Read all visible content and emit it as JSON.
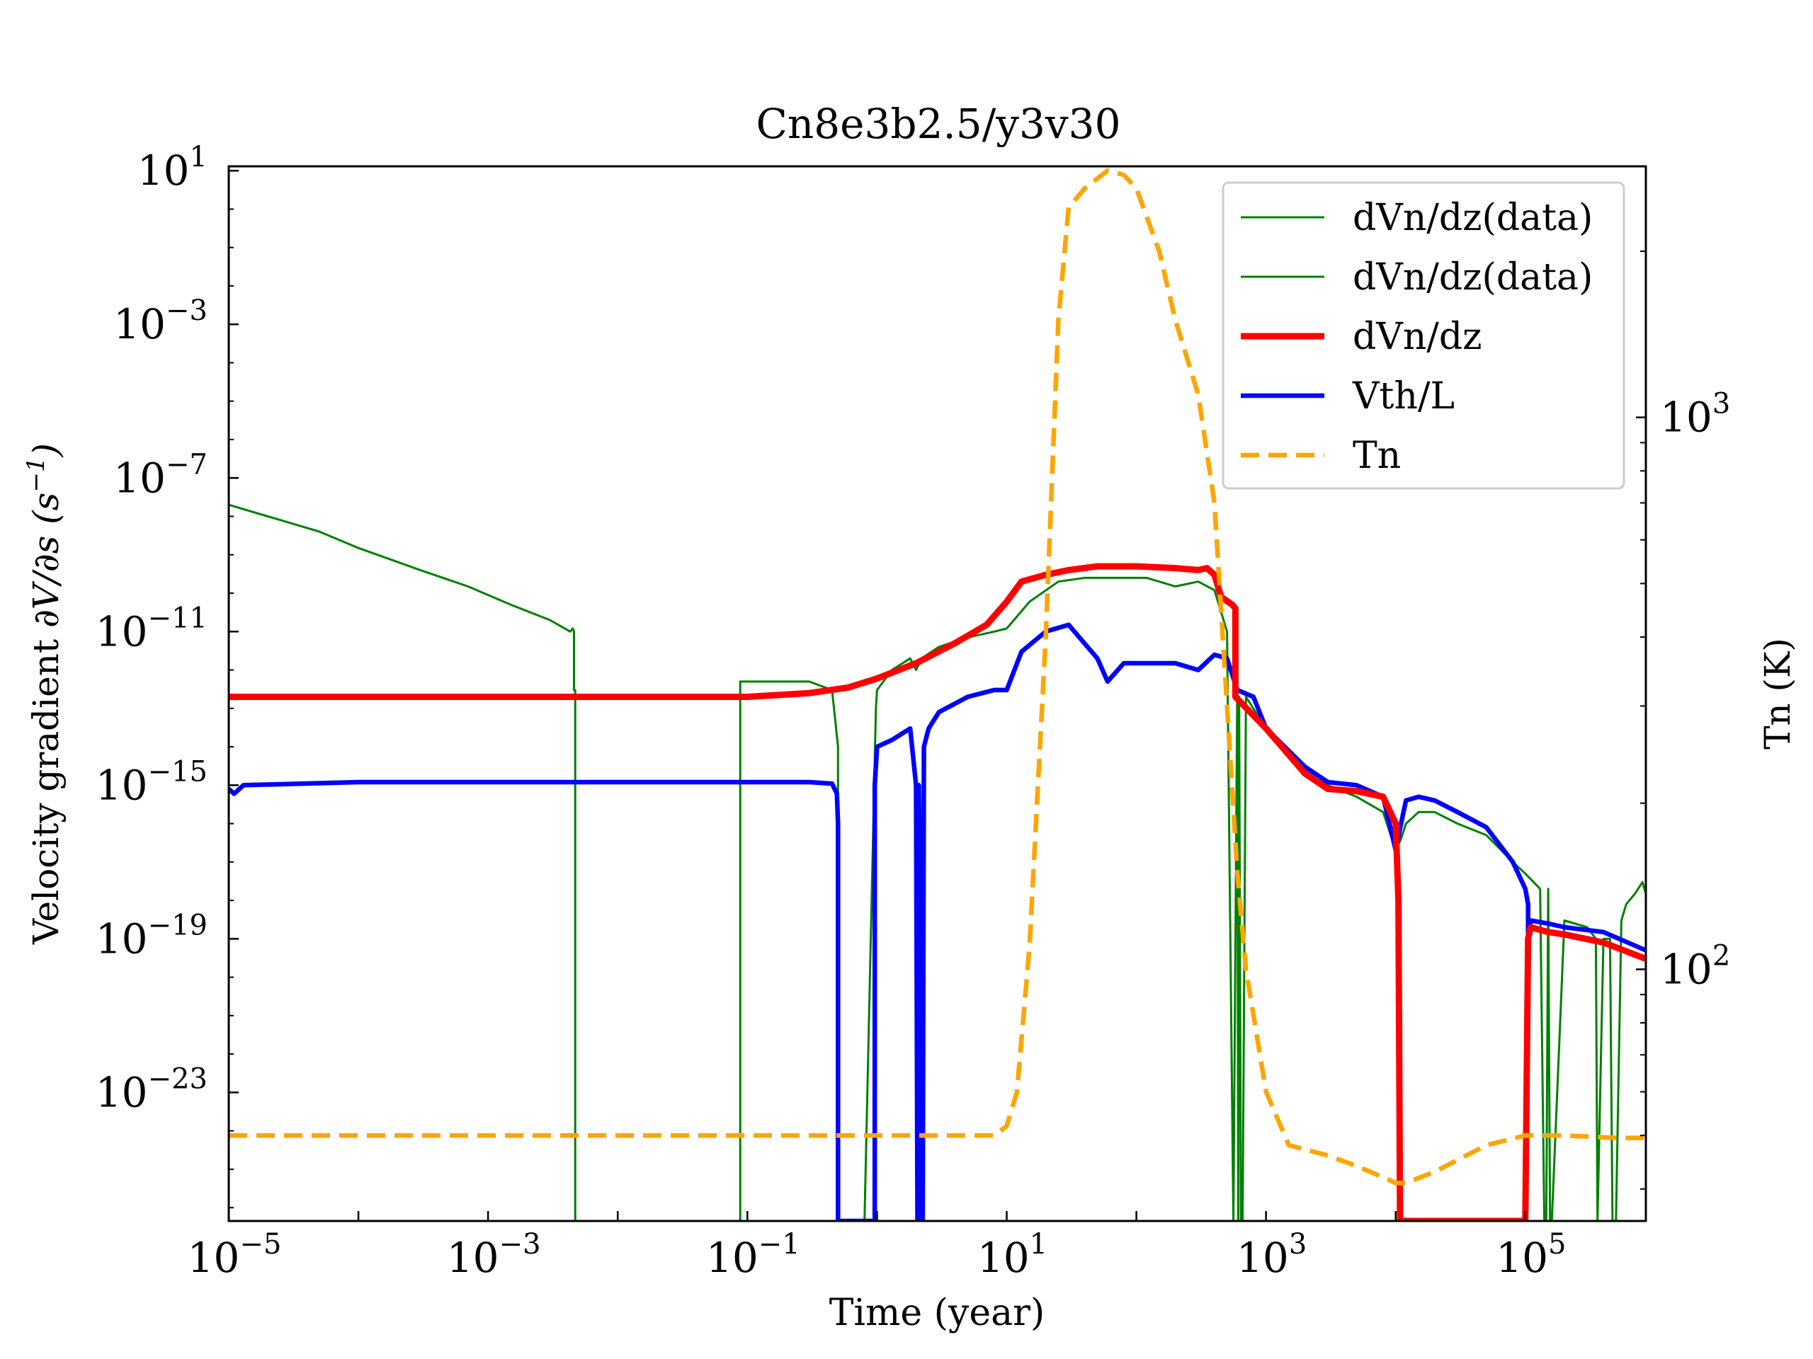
{
  "chart_data": {
    "type": "line",
    "title": "Cn8e3b2.5/y3v30",
    "xlabel": "Time (year)",
    "ylabel": "Velocity gradient ∂V/∂s (s⁻¹)",
    "ylabel_parts": {
      "main": "Velocity gradient ",
      "expr": "∂V/∂s (s",
      "sup": "−1",
      "end": ")"
    },
    "y2label": "Tn (K)",
    "x_scale": "log",
    "y_scale": "log",
    "y2_scale": "log",
    "xlim": [
      1e-05,
      850000.0
    ],
    "ylim": [
      4.5e-27,
      13.0
    ],
    "y2lim": [
      35,
      2850.0
    ],
    "x_ticks": [
      {
        "base": "10",
        "exp": "−5"
      },
      {
        "base": "10",
        "exp": "−3"
      },
      {
        "base": "10",
        "exp": "−1"
      },
      {
        "base": "10",
        "exp": "1"
      },
      {
        "base": "10",
        "exp": "3"
      },
      {
        "base": "10",
        "exp": "5"
      }
    ],
    "y_ticks": [
      {
        "base": "10",
        "exp": "1"
      },
      {
        "base": "10",
        "exp": "−3"
      },
      {
        "base": "10",
        "exp": "−7"
      },
      {
        "base": "10",
        "exp": "−11"
      },
      {
        "base": "10",
        "exp": "−15"
      },
      {
        "base": "10",
        "exp": "−19"
      },
      {
        "base": "10",
        "exp": "−23"
      }
    ],
    "y2_ticks": [
      {
        "base": "10",
        "exp": "3"
      },
      {
        "base": "10",
        "exp": "2"
      }
    ],
    "legend_position": "top-right",
    "series": [
      {
        "name": "dVn/dz(data)",
        "color": "#008000",
        "style": "solid",
        "width": "thin",
        "axis": "left",
        "x": [
          1e-05,
          2e-05,
          5e-05,
          0.0001,
          0.0003,
          0.0007,
          0.0015,
          0.003,
          0.0043,
          0.0045,
          0.0046,
          0.0046,
          0.0047,
          0.0047,
          0.088,
          0.088,
          0.09,
          0.3,
          0.45,
          0.5,
          0.5,
          0.8,
          0.98,
          1.0,
          1.3,
          1.8,
          2.0,
          2.2,
          3.0,
          5.0,
          8.0,
          10
        ],
        "y": [
          2e-08,
          1e-08,
          4e-09,
          1.5e-09,
          4e-10,
          1.5e-10,
          5e-11,
          2e-11,
          1e-11,
          1.2e-11,
          1e-11,
          3e-13,
          3e-13,
          4.5e-27,
          4.5e-27,
          5e-13,
          5e-13,
          5e-13,
          3e-13,
          1e-14,
          4.5e-27,
          4.5e-27,
          1e-13,
          3e-13,
          1e-12,
          2e-12,
          1e-12,
          2e-12,
          4e-12,
          7e-12,
          1e-11,
          1.2e-11
        ]
      },
      {
        "name": "dVn/dz(data)",
        "color": "#008000",
        "style": "solid",
        "width": "thin",
        "axis": "left",
        "x": [
          10,
          15,
          25,
          40,
          70,
          120,
          200,
          300,
          400,
          500,
          560,
          600,
          610,
          620,
          640,
          660,
          700,
          1000,
          2000,
          3000,
          5000,
          8000,
          10000,
          11000,
          12000,
          15000,
          20000,
          30000,
          50000,
          80000,
          100000,
          130000,
          140000,
          145000,
          150000,
          155000,
          160000,
          200000,
          300000,
          350000,
          360000,
          400000,
          450000,
          470000,
          500000,
          550000,
          600000,
          700000,
          800000,
          850000
        ],
        "y": [
          1.2e-11,
          6e-11,
          2e-10,
          2.5e-10,
          2.5e-10,
          2.5e-10,
          1.5e-10,
          2e-10,
          1.2e-10,
          1e-11,
          4.5e-27,
          5e-13,
          4.5e-27,
          2e-13,
          4.5e-27,
          4.5e-27,
          2e-13,
          3e-14,
          2e-15,
          1e-15,
          5e-16,
          2e-16,
          2e-17,
          4e-17,
          1e-16,
          2e-16,
          2e-16,
          1e-16,
          5e-17,
          1e-17,
          5e-18,
          2e-18,
          4.5e-27,
          4.5e-27,
          2e-18,
          4.5e-27,
          4.5e-27,
          3e-19,
          2e-19,
          1e-19,
          4.5e-27,
          1e-19,
          1e-19,
          4.5e-27,
          4.5e-27,
          3e-19,
          8e-19,
          1.5e-18,
          3e-18,
          1.5e-18
        ]
      },
      {
        "name": "dVn/dz",
        "color": "#ff0000",
        "style": "solid",
        "width": "thick",
        "axis": "left",
        "x": [
          1e-05,
          0.001,
          0.1,
          0.3,
          0.6,
          1.0,
          2.0,
          4.0,
          7.0,
          10,
          13,
          20,
          30,
          50,
          100,
          200,
          300,
          350,
          400,
          450,
          550,
          580,
          580,
          1000,
          2000,
          3000,
          5000,
          8000,
          10000,
          10500,
          10800,
          10800,
          100000,
          105000,
          105000,
          110000,
          150000,
          200000,
          400000,
          850000
        ],
        "y": [
          2e-13,
          2e-13,
          2e-13,
          2.5e-13,
          3.5e-13,
          6e-13,
          1.5e-12,
          5e-12,
          1.5e-11,
          6e-11,
          2e-10,
          3e-10,
          4e-10,
          5e-10,
          5e-10,
          4.5e-10,
          4e-10,
          4.5e-10,
          3e-10,
          8e-11,
          5e-11,
          4e-11,
          2e-13,
          3e-14,
          2e-15,
          8e-16,
          7e-16,
          5e-16,
          1e-16,
          1e-18,
          4.5e-27,
          4.5e-27,
          4.5e-27,
          1e-19,
          1e-19,
          2e-19,
          1.5e-19,
          1.3e-19,
          8e-20,
          3e-20
        ]
      },
      {
        "name": "Vth/L",
        "color": "#0000ff",
        "style": "solid",
        "width": "medium",
        "axis": "left",
        "x": [
          1e-05,
          1.1e-05,
          1.3e-05,
          0.0001,
          0.3,
          0.45,
          0.49,
          0.5,
          0.5,
          0.96,
          0.96,
          1.0,
          1.3,
          1.8,
          2.0,
          2.05,
          2.1,
          2.1,
          2.25,
          2.25,
          2.3,
          2.5,
          3.0,
          5.0,
          8.0,
          10,
          13,
          20,
          30,
          50,
          60,
          80,
          100,
          200,
          300,
          400,
          500,
          600,
          800,
          1000,
          2000,
          3000,
          5000,
          8000,
          10000,
          11000,
          12000,
          15000,
          20000,
          30000,
          50000,
          80000,
          100000,
          105000,
          105000,
          110000,
          150000,
          200000,
          400000,
          850000
        ],
        "y": [
          8e-16,
          6e-16,
          1e-15,
          1.2e-15,
          1.2e-15,
          1.1e-15,
          6e-16,
          1e-16,
          4.5e-27,
          4.5e-27,
          1e-15,
          1e-14,
          1.5e-14,
          3e-14,
          1e-15,
          4.5e-27,
          4.5e-27,
          1e-15,
          4.5e-27,
          4.5e-27,
          1e-14,
          3e-14,
          8e-14,
          2e-13,
          3e-13,
          3e-13,
          3e-12,
          1e-11,
          1.5e-11,
          2e-12,
          5e-13,
          1.5e-12,
          1.5e-12,
          1.5e-12,
          1e-12,
          2.5e-12,
          2e-12,
          3e-13,
          2e-13,
          3e-14,
          3e-15,
          1.2e-15,
          1e-15,
          5e-16,
          2e-17,
          1e-16,
          4e-16,
          5e-16,
          4e-16,
          2e-16,
          8e-17,
          1e-17,
          2e-18,
          8e-19,
          1e-19,
          3e-19,
          2.5e-19,
          2e-19,
          1.5e-19,
          5e-20
        ]
      },
      {
        "name": "Tn",
        "color": "#ffa500",
        "style": "dashed",
        "width": "medium",
        "axis": "right",
        "x": [
          1e-05,
          1,
          8,
          10,
          12,
          15,
          20,
          25,
          30,
          40,
          60,
          80,
          100,
          150,
          200,
          300,
          400,
          500,
          600,
          700,
          1000,
          1500,
          3000,
          5000,
          8000,
          10000,
          12000,
          20000,
          50000,
          100000,
          200000,
          500000,
          850000
        ],
        "y": [
          50,
          50,
          50,
          52,
          60,
          110,
          400,
          1500,
          2400,
          2600,
          2800,
          2750,
          2600,
          2000,
          1500,
          1100,
          700,
          300,
          150,
          100,
          60,
          48,
          46,
          44,
          42,
          41,
          41,
          43,
          48,
          50,
          50,
          49.5,
          49.5
        ]
      }
    ]
  }
}
